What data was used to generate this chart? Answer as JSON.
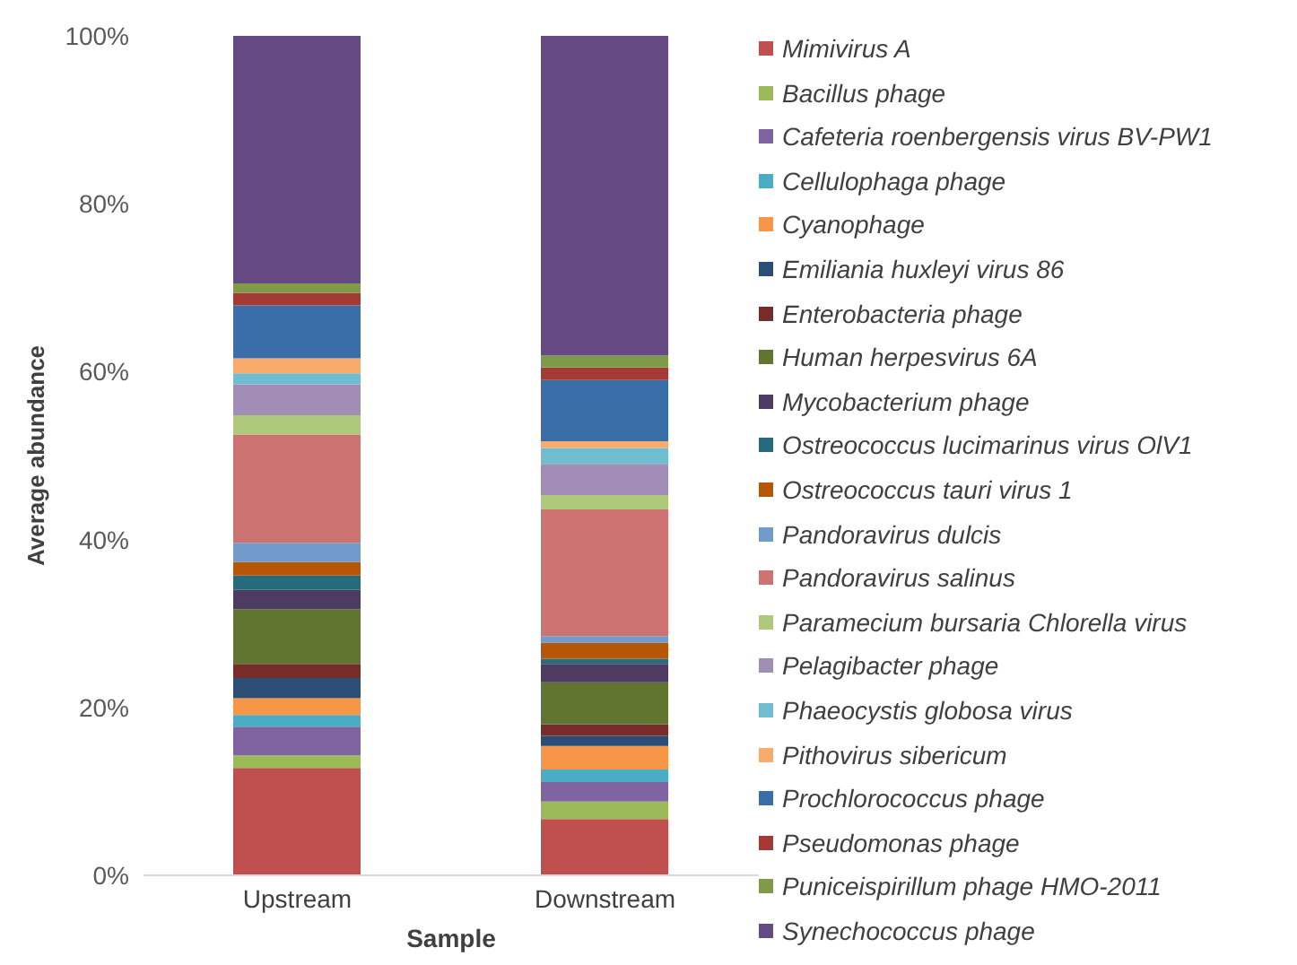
{
  "chart_data": {
    "type": "bar",
    "stacked": true,
    "xlabel": "Sample",
    "ylabel": "Average abundance",
    "categories": [
      "Upstream",
      "Downstream"
    ],
    "ylim": [
      0,
      100
    ],
    "yticks": [
      {
        "value": 0,
        "label": "0%"
      },
      {
        "value": 20,
        "label": "20%"
      },
      {
        "value": 40,
        "label": "40%"
      },
      {
        "value": 60,
        "label": "60%"
      },
      {
        "value": 80,
        "label": "80%"
      },
      {
        "value": 100,
        "label": "100%"
      }
    ],
    "legend": "right",
    "series": [
      {
        "name": "Mimivirus A",
        "color": "#c0504d",
        "values": [
          12.8,
          6.7
        ]
      },
      {
        "name": "Bacillus phage",
        "color": "#9bbb59",
        "values": [
          1.5,
          2.1
        ]
      },
      {
        "name": "Cafeteria roenbergensis virus BV-PW1",
        "color": "#8064a2",
        "values": [
          3.4,
          2.3
        ]
      },
      {
        "name": "Cellulophaga phage",
        "color": "#4bacc6",
        "values": [
          1.4,
          1.5
        ]
      },
      {
        "name": "Cyanophage",
        "color": "#f79646",
        "values": [
          2.0,
          2.8
        ]
      },
      {
        "name": "Emiliania huxleyi virus 86",
        "color": "#2c4d75",
        "values": [
          2.4,
          1.2
        ]
      },
      {
        "name": "Enterobacteria phage",
        "color": "#772c2a",
        "values": [
          1.7,
          1.4
        ]
      },
      {
        "name": "Human herpesvirus 6A",
        "color": "#5f7530",
        "values": [
          6.5,
          5.0
        ]
      },
      {
        "name": "Mycobacterium phage",
        "color": "#4d3b62",
        "values": [
          2.3,
          2.2
        ]
      },
      {
        "name": "Ostreococcus lucimarinus virus OlV1",
        "color": "#276a7c",
        "values": [
          1.7,
          0.6
        ]
      },
      {
        "name": "Ostreococcus tauri virus 1",
        "color": "#b65708",
        "values": [
          1.6,
          1.9
        ]
      },
      {
        "name": "Pandoravirus dulcis",
        "color": "#729aca",
        "values": [
          2.3,
          0.8
        ]
      },
      {
        "name": "Pandoravirus salinus",
        "color": "#cd7371",
        "values": [
          12.9,
          15.1
        ]
      },
      {
        "name": "Paramecium bursaria Chlorella virus",
        "color": "#afc97a",
        "values": [
          2.3,
          1.7
        ]
      },
      {
        "name": "Pelagibacter phage",
        "color": "#a18db6",
        "values": [
          3.7,
          3.7
        ]
      },
      {
        "name": "Phaeocystis globosa virus",
        "color": "#6fbdd1",
        "values": [
          1.3,
          1.9
        ]
      },
      {
        "name": "Pithovirus sibericum",
        "color": "#f9ab6b",
        "values": [
          1.8,
          0.8
        ]
      },
      {
        "name": "Prochlorococcus phage",
        "color": "#3a6ea8",
        "values": [
          6.3,
          7.3
        ]
      },
      {
        "name": "Pseudomonas phage",
        "color": "#a33a36",
        "values": [
          1.5,
          1.5
        ]
      },
      {
        "name": "Puniceispirillum phage HMO-2011",
        "color": "#7f9a48",
        "values": [
          1.1,
          1.4
        ]
      },
      {
        "name": "Synechococcus phage",
        "color": "#654a84",
        "values": [
          29.5,
          38.1
        ]
      }
    ]
  }
}
